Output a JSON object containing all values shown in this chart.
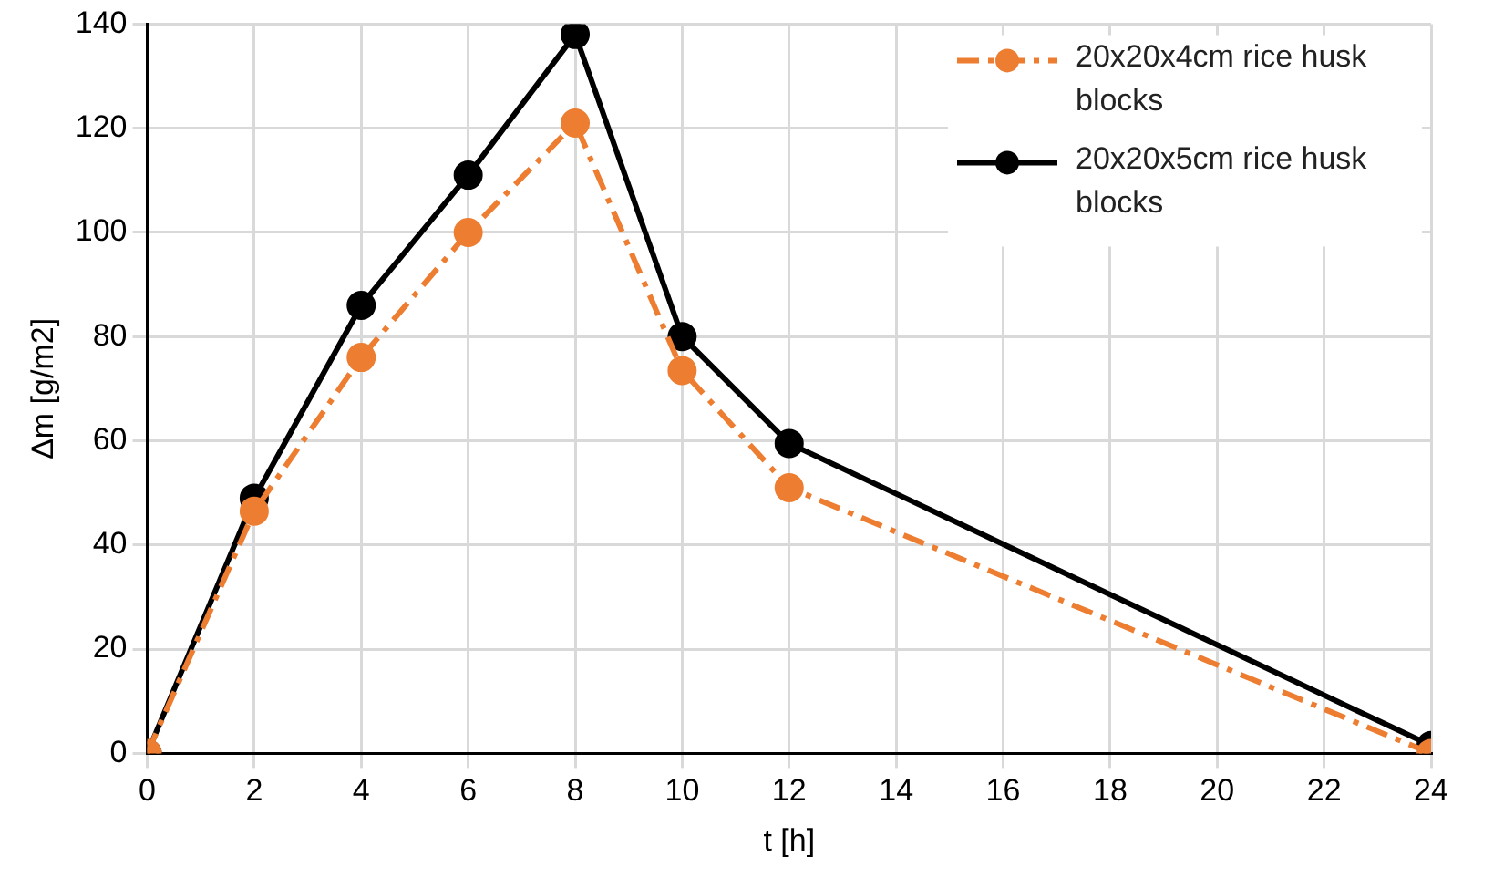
{
  "chart_data": {
    "type": "line",
    "xlabel": "t [h]",
    "ylabel": "Δm [g/m2]",
    "x": [
      0,
      2,
      4,
      6,
      8,
      10,
      12,
      24
    ],
    "series": [
      {
        "name": "20x20x4cm rice husk blocks",
        "color": "#ed7d31",
        "line_style": "dashed",
        "values": [
          0,
          46.5,
          76,
          100,
          121,
          73.5,
          51,
          0
        ]
      },
      {
        "name": "20x20x5cm rice husk blocks",
        "color": "#000000",
        "line_style": "solid",
        "values": [
          0,
          49,
          86,
          111,
          138,
          80,
          59.5,
          1.5
        ]
      }
    ],
    "xlim": [
      0,
      24
    ],
    "xticks": [
      0,
      2,
      4,
      6,
      8,
      10,
      12,
      14,
      16,
      18,
      20,
      22,
      24
    ],
    "ylim": [
      0,
      140
    ],
    "yticks": [
      0,
      20,
      40,
      60,
      80,
      100,
      120,
      140
    ],
    "grid": true,
    "legend": "top right",
    "marker": "circle"
  }
}
